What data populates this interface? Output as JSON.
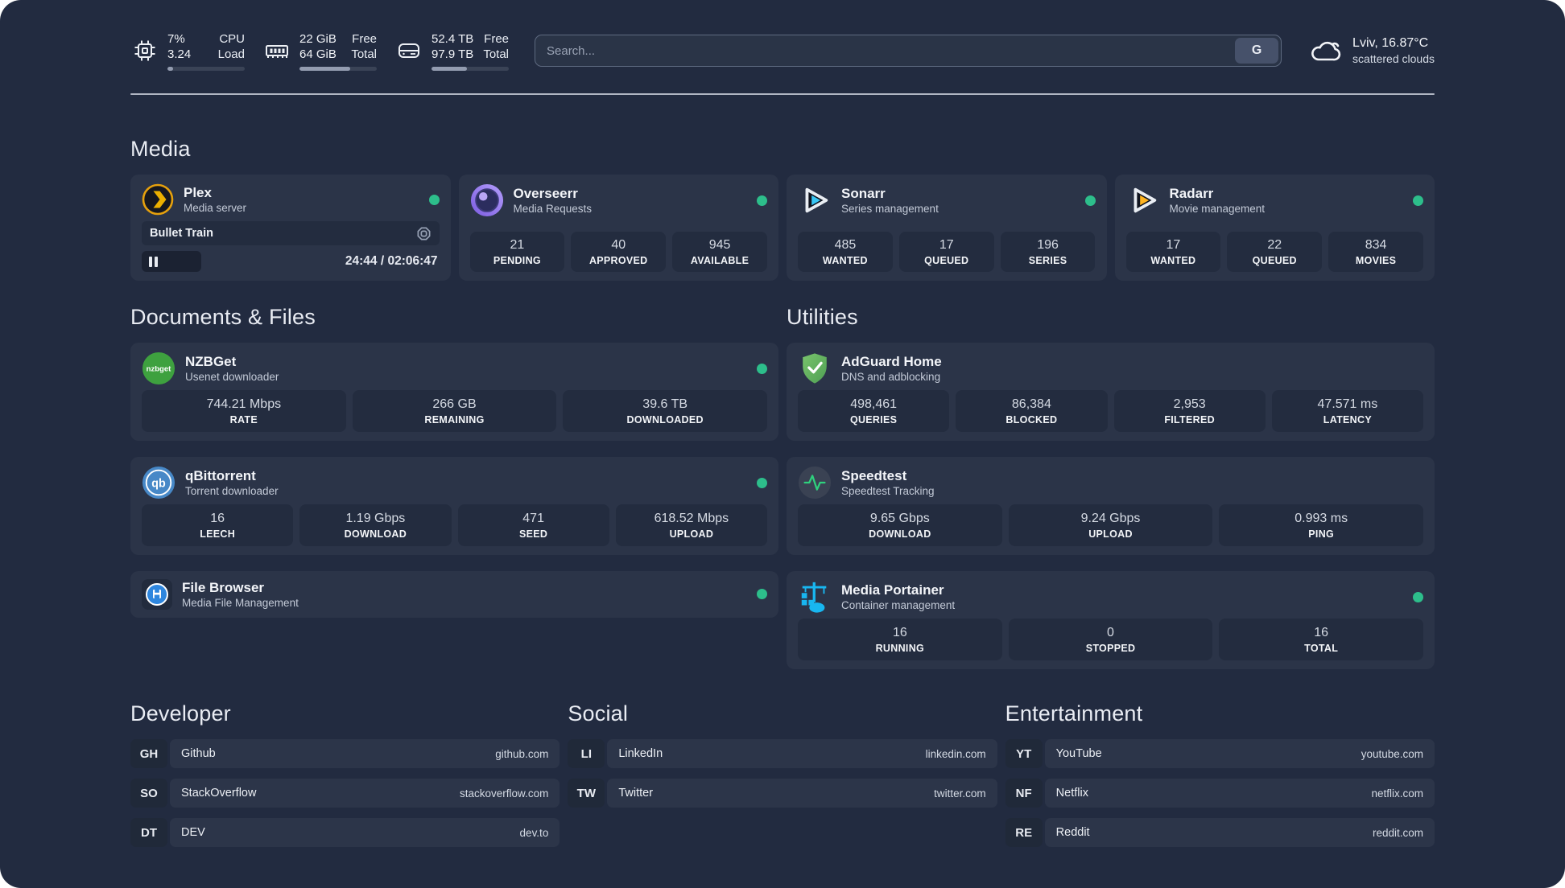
{
  "topbar": {
    "cpu": {
      "v1": "7%",
      "v2": "3.24",
      "l1": "CPU",
      "l2": "Load",
      "progress": 7
    },
    "memory": {
      "v1": "22 GiB",
      "v2": "64 GiB",
      "l1": "Free",
      "l2": "Total",
      "progress": 66
    },
    "disk": {
      "v1": "52.4 TB",
      "v2": "97.9 TB",
      "l1": "Free",
      "l2": "Total",
      "progress": 46
    },
    "search": {
      "placeholder": "Search...",
      "button_label": "G"
    },
    "weather": {
      "location": "Lviv, 16.87°C",
      "condition": "scattered clouds"
    }
  },
  "sections": {
    "media": {
      "title": "Media",
      "plex": {
        "name": "Plex",
        "subtitle": "Media server",
        "now_playing": "Bullet Train",
        "time": "24:44 / 02:06:47",
        "progress": 20
      },
      "overseerr": {
        "name": "Overseerr",
        "subtitle": "Media Requests",
        "stats": [
          {
            "value": "21",
            "label": "PENDING"
          },
          {
            "value": "40",
            "label": "APPROVED"
          },
          {
            "value": "945",
            "label": "AVAILABLE"
          }
        ]
      },
      "sonarr": {
        "name": "Sonarr",
        "subtitle": "Series management",
        "stats": [
          {
            "value": "485",
            "label": "WANTED"
          },
          {
            "value": "17",
            "label": "QUEUED"
          },
          {
            "value": "196",
            "label": "SERIES"
          }
        ]
      },
      "radarr": {
        "name": "Radarr",
        "subtitle": "Movie management",
        "stats": [
          {
            "value": "17",
            "label": "WANTED"
          },
          {
            "value": "22",
            "label": "QUEUED"
          },
          {
            "value": "834",
            "label": "MOVIES"
          }
        ]
      }
    },
    "documents": {
      "title": "Documents & Files",
      "nzbget": {
        "name": "NZBGet",
        "subtitle": "Usenet downloader",
        "stats": [
          {
            "value": "744.21 Mbps",
            "label": "RATE"
          },
          {
            "value": "266 GB",
            "label": "REMAINING"
          },
          {
            "value": "39.6 TB",
            "label": "DOWNLOADED"
          }
        ]
      },
      "qbittorrent": {
        "name": "qBittorrent",
        "subtitle": "Torrent downloader",
        "stats": [
          {
            "value": "16",
            "label": "LEECH"
          },
          {
            "value": "1.19 Gbps",
            "label": "DOWNLOAD"
          },
          {
            "value": "471",
            "label": "SEED"
          },
          {
            "value": "618.52 Mbps",
            "label": "UPLOAD"
          }
        ]
      },
      "filebrowser": {
        "name": "File Browser",
        "subtitle": "Media File Management"
      }
    },
    "utilities": {
      "title": "Utilities",
      "adguard": {
        "name": "AdGuard Home",
        "subtitle": "DNS and adblocking",
        "stats": [
          {
            "value": "498,461",
            "label": "QUERIES"
          },
          {
            "value": "86,384",
            "label": "BLOCKED"
          },
          {
            "value": "2,953",
            "label": "FILTERED"
          },
          {
            "value": "47.571 ms",
            "label": "LATENCY"
          }
        ]
      },
      "speedtest": {
        "name": "Speedtest",
        "subtitle": "Speedtest Tracking",
        "stats": [
          {
            "value": "9.65 Gbps",
            "label": "DOWNLOAD"
          },
          {
            "value": "9.24 Gbps",
            "label": "UPLOAD"
          },
          {
            "value": "0.993 ms",
            "label": "PING"
          }
        ]
      },
      "portainer": {
        "name": "Media Portainer",
        "subtitle": "Container management",
        "stats": [
          {
            "value": "16",
            "label": "RUNNING"
          },
          {
            "value": "0",
            "label": "STOPPED"
          },
          {
            "value": "16",
            "label": "TOTAL"
          }
        ]
      }
    },
    "links": {
      "developer": {
        "title": "Developer",
        "items": [
          {
            "abbr": "GH",
            "name": "Github",
            "url": "github.com"
          },
          {
            "abbr": "SO",
            "name": "StackOverflow",
            "url": "stackoverflow.com"
          },
          {
            "abbr": "DT",
            "name": "DEV",
            "url": "dev.to"
          }
        ]
      },
      "social": {
        "title": "Social",
        "items": [
          {
            "abbr": "LI",
            "name": "LinkedIn",
            "url": "linkedin.com"
          },
          {
            "abbr": "TW",
            "name": "Twitter",
            "url": "twitter.com"
          }
        ]
      },
      "entertainment": {
        "title": "Entertainment",
        "items": [
          {
            "abbr": "YT",
            "name": "YouTube",
            "url": "youtube.com"
          },
          {
            "abbr": "NF",
            "name": "Netflix",
            "url": "netflix.com"
          },
          {
            "abbr": "RE",
            "name": "Reddit",
            "url": "reddit.com"
          }
        ]
      }
    }
  }
}
